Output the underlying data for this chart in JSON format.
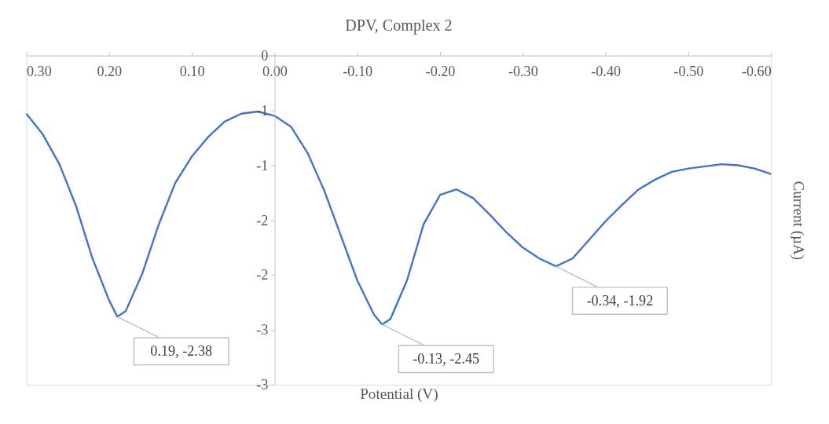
{
  "chart_data": {
    "type": "line",
    "title": "DPV, Complex 2",
    "xlabel": "Potential (V)",
    "ylabel": "Current (µA)",
    "x": [
      0.3,
      0.28,
      0.26,
      0.24,
      0.22,
      0.2,
      0.19,
      0.18,
      0.16,
      0.14,
      0.12,
      0.1,
      0.08,
      0.06,
      0.04,
      0.02,
      0.0,
      -0.02,
      -0.04,
      -0.06,
      -0.08,
      -0.1,
      -0.12,
      -0.13,
      -0.14,
      -0.16,
      -0.18,
      -0.2,
      -0.22,
      -0.24,
      -0.26,
      -0.28,
      -0.3,
      -0.32,
      -0.34,
      -0.36,
      -0.38,
      -0.4,
      -0.42,
      -0.44,
      -0.46,
      -0.48,
      -0.5,
      -0.52,
      -0.54,
      -0.56,
      -0.58,
      -0.6
    ],
    "series": [
      {
        "color": "#4472c4",
        "values": [
          -0.53,
          -0.72,
          -0.99,
          -1.37,
          -1.85,
          -2.23,
          -2.38,
          -2.33,
          -1.99,
          -1.54,
          -1.16,
          -0.92,
          -0.74,
          -0.6,
          -0.53,
          -0.51,
          -0.55,
          -0.65,
          -0.89,
          -1.23,
          -1.64,
          -2.05,
          -2.36,
          -2.45,
          -2.4,
          -2.05,
          -1.54,
          -1.27,
          -1.22,
          -1.3,
          -1.45,
          -1.61,
          -1.75,
          -1.85,
          -1.92,
          -1.85,
          -1.68,
          -1.51,
          -1.36,
          -1.22,
          -1.13,
          -1.06,
          -1.03,
          -1.01,
          -0.99,
          -1.0,
          -1.03,
          -1.08
        ]
      }
    ],
    "xlim": [
      0.3,
      -0.6
    ],
    "xticks": [
      {
        "value": 0.3,
        "label": "0.30"
      },
      {
        "value": 0.2,
        "label": "0.20"
      },
      {
        "value": 0.1,
        "label": "0.10"
      },
      {
        "value": 0.0,
        "label": "0.00"
      },
      {
        "value": -0.1,
        "label": "-0.10"
      },
      {
        "value": -0.2,
        "label": "-0.20"
      },
      {
        "value": -0.3,
        "label": "-0.30"
      },
      {
        "value": -0.4,
        "label": "-0.40"
      },
      {
        "value": -0.5,
        "label": "-0.50"
      },
      {
        "value": -0.6,
        "label": "-0.60"
      }
    ],
    "ylim": [
      -3,
      0
    ],
    "yticks": [
      0,
      {
        "value": -0.5,
        "label": "-1"
      },
      -1,
      {
        "value": -1.5,
        "label": "-2"
      },
      -2,
      {
        "value": -2.5,
        "label": "-3"
      },
      -3
    ],
    "annotations": [
      {
        "text": "0.19, -2.38",
        "x": 0.19,
        "y": -2.38
      },
      {
        "text": "-0.13, -2.45",
        "x": -0.13,
        "y": -2.45
      },
      {
        "text": "-0.34, -1.92",
        "x": -0.34,
        "y": -1.92
      }
    ],
    "grid": false,
    "marker": "none",
    "line_style": "solid"
  }
}
